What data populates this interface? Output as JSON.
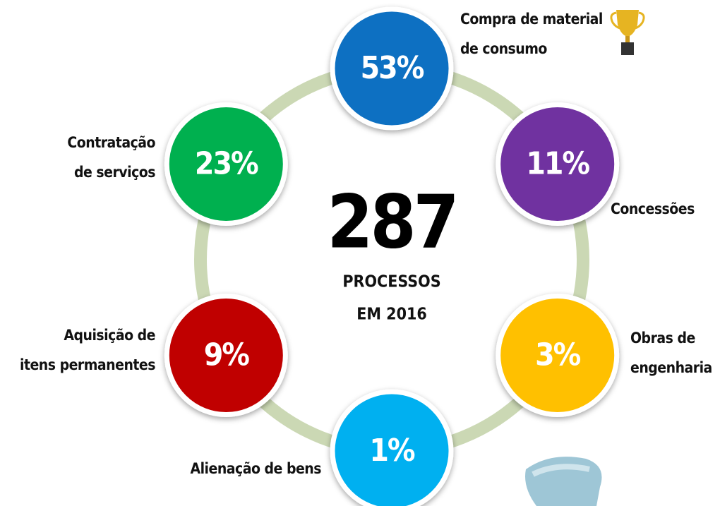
{
  "center": {
    "number": "287",
    "label": [
      "PROCESSOS",
      "EM 2016"
    ]
  },
  "nodes": [
    {
      "value": "53%",
      "label": [
        "Compra de material",
        "de consumo"
      ],
      "color": "#0a6fc2"
    },
    {
      "value": "11%",
      "label": [
        "Concessões"
      ],
      "color": "#7030a0"
    },
    {
      "value": "3%",
      "label": [
        "Obras de",
        "engenharia"
      ],
      "color": "#ffc000"
    },
    {
      "value": "1%",
      "label": [
        "Alienação de bens"
      ],
      "color": "#00b0f0"
    },
    {
      "value": "9%",
      "label": [
        "Aquisição de",
        "itens permanentes"
      ],
      "color": "#c00000"
    },
    {
      "value": "23%",
      "label": [
        "Contratação",
        "de serviços"
      ],
      "color": "#00b050"
    }
  ]
}
